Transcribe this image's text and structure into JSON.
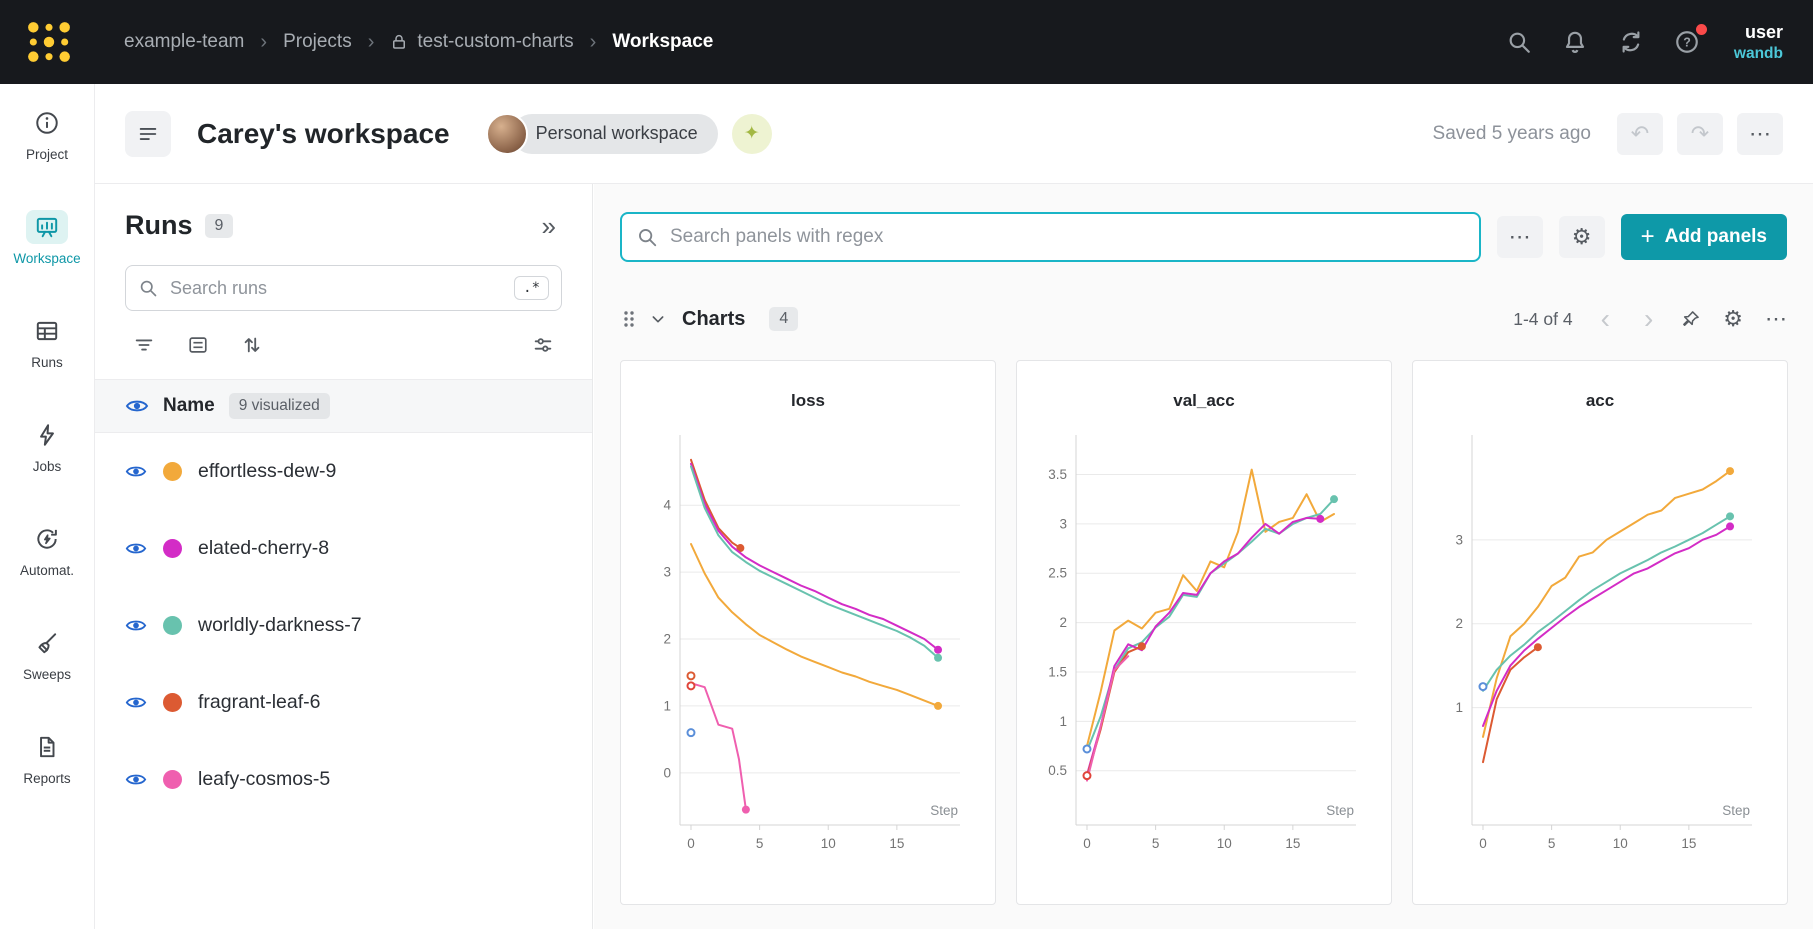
{
  "topbar": {
    "breadcrumb": {
      "team": "example-team",
      "section": "Projects",
      "project": "test-custom-charts",
      "page": "Workspace"
    },
    "username": "user",
    "brand": "wandb"
  },
  "left_rail": {
    "items": [
      {
        "label": "Project"
      },
      {
        "label": "Workspace"
      },
      {
        "label": "Runs"
      },
      {
        "label": "Jobs"
      },
      {
        "label": "Automat."
      },
      {
        "label": "Sweeps"
      },
      {
        "label": "Reports"
      }
    ]
  },
  "workspace_header": {
    "title": "Carey's workspace",
    "workspace_badge": "Personal workspace",
    "saved_status": "Saved 5 years ago"
  },
  "runs_panel": {
    "title": "Runs",
    "count": "9",
    "search_placeholder": "Search runs",
    "regex_button": ".*",
    "table_header": {
      "name": "Name",
      "visualized_badge": "9 visualized"
    },
    "runs": [
      {
        "name": "effortless-dew-9",
        "color": "#F2A93B"
      },
      {
        "name": "elated-cherry-8",
        "color": "#D32CC6"
      },
      {
        "name": "worldly-darkness-7",
        "color": "#68C2AE"
      },
      {
        "name": "fragrant-leaf-6",
        "color": "#DC5A32"
      },
      {
        "name": "leafy-cosmos-5",
        "color": "#EF5FAF"
      }
    ]
  },
  "panels_toolbar": {
    "search_placeholder": "Search panels with regex",
    "add_panels_label": "Add panels"
  },
  "charts_section": {
    "title": "Charts",
    "count": "4",
    "pagination": "1-4 of 4"
  },
  "icons": {
    "ellipsis": "⋯",
    "collapse_runs": "»",
    "undo": "↶",
    "redo": "↷",
    "prev": "‹",
    "next": "›",
    "gear": "⚙",
    "sparkle": "✦",
    "plus": "+"
  },
  "colors": {
    "accent_teal": "#0E99A8",
    "focus_border": "#1AB5C7",
    "eye_blue": "#2566CE",
    "brand_cyan": "#4CC8D9",
    "logo_yellow": "#FFCC33",
    "notification_red": "#FB4A4A"
  },
  "chart_data": [
    {
      "type": "line",
      "title": "loss",
      "xlabel": "Step",
      "x_ticks": [
        0,
        5,
        10,
        15
      ],
      "y_ticks": [
        0,
        1,
        2,
        3,
        4
      ],
      "xlim": [
        -0.8,
        19.6
      ],
      "ylim": [
        -0.78,
        5.05
      ],
      "legend": "off",
      "grid": "horizontal",
      "series": [
        {
          "name": "fragrant-leaf-6",
          "color": "#DC5A32",
          "end_dot": true,
          "points": [
            [
              0,
              4.68
            ],
            [
              1,
              4.08
            ],
            [
              2,
              3.66
            ],
            [
              3,
              3.44
            ],
            [
              3.6,
              3.36
            ]
          ]
        },
        {
          "name": "elated-cherry-8",
          "color": "#D32CC6",
          "end_dot": true,
          "points": [
            [
              0,
              4.62
            ],
            [
              1,
              4.02
            ],
            [
              2,
              3.62
            ],
            [
              3,
              3.38
            ],
            [
              4,
              3.22
            ],
            [
              5,
              3.1
            ],
            [
              6,
              3.0
            ],
            [
              7,
              2.9
            ],
            [
              8,
              2.8
            ],
            [
              9,
              2.72
            ],
            [
              10,
              2.62
            ],
            [
              11,
              2.52
            ],
            [
              12,
              2.45
            ],
            [
              13,
              2.36
            ],
            [
              14,
              2.3
            ],
            [
              15,
              2.2
            ],
            [
              16,
              2.1
            ],
            [
              17,
              2.0
            ],
            [
              18,
              1.84
            ]
          ]
        },
        {
          "name": "worldly-darkness-7",
          "color": "#68C2AE",
          "end_dot": true,
          "points": [
            [
              0,
              4.58
            ],
            [
              1,
              3.96
            ],
            [
              2,
              3.55
            ],
            [
              3,
              3.3
            ],
            [
              4,
              3.15
            ],
            [
              5,
              3.02
            ],
            [
              6,
              2.92
            ],
            [
              7,
              2.82
            ],
            [
              8,
              2.72
            ],
            [
              9,
              2.62
            ],
            [
              10,
              2.52
            ],
            [
              11,
              2.44
            ],
            [
              12,
              2.36
            ],
            [
              13,
              2.28
            ],
            [
              14,
              2.2
            ],
            [
              15,
              2.12
            ],
            [
              16,
              2.02
            ],
            [
              17,
              1.9
            ],
            [
              18,
              1.72
            ]
          ]
        },
        {
          "name": "effortless-dew-9",
          "color": "#F2A93B",
          "end_dot": true,
          "points": [
            [
              0,
              3.42
            ],
            [
              1,
              2.98
            ],
            [
              2,
              2.62
            ],
            [
              3,
              2.4
            ],
            [
              4,
              2.22
            ],
            [
              5,
              2.06
            ],
            [
              6,
              1.95
            ],
            [
              7,
              1.84
            ],
            [
              8,
              1.74
            ],
            [
              9,
              1.66
            ],
            [
              10,
              1.58
            ],
            [
              11,
              1.5
            ],
            [
              12,
              1.44
            ],
            [
              13,
              1.36
            ],
            [
              14,
              1.3
            ],
            [
              15,
              1.24
            ],
            [
              16,
              1.16
            ],
            [
              17,
              1.08
            ],
            [
              18,
              1.0
            ]
          ]
        },
        {
          "name": "leafy-cosmos-5",
          "color": "#EF5FAF",
          "end_dot": true,
          "points": [
            [
              0,
              1.34
            ],
            [
              1,
              1.28
            ],
            [
              2,
              0.72
            ],
            [
              3,
              0.66
            ],
            [
              3.5,
              0.2
            ],
            [
              4,
              -0.55
            ]
          ]
        },
        {
          "name": "",
          "color": "#DC5A32",
          "open_dot": true,
          "points": [
            [
              0,
              1.45
            ]
          ]
        },
        {
          "name": "",
          "color": "#E0443A",
          "open_dot": true,
          "points": [
            [
              0,
              1.3
            ]
          ]
        },
        {
          "name": "",
          "color": "#5B8FD9",
          "open_dot": true,
          "points": [
            [
              0,
              0.6
            ]
          ]
        }
      ]
    },
    {
      "type": "line",
      "title": "val_acc",
      "xlabel": "Step",
      "x_ticks": [
        0,
        5,
        10,
        15
      ],
      "y_ticks": [
        0.5,
        1,
        1.5,
        2,
        2.5,
        3,
        3.5
      ],
      "xlim": [
        -0.8,
        19.6
      ],
      "ylim": [
        -0.05,
        3.9
      ],
      "legend": "off",
      "grid": "horizontal",
      "series": [
        {
          "name": "effortless-dew-9",
          "color": "#F2A93B",
          "points": [
            [
              0,
              0.75
            ],
            [
              1,
              1.3
            ],
            [
              2,
              1.92
            ],
            [
              3,
              2.02
            ],
            [
              4,
              1.94
            ],
            [
              5,
              2.1
            ],
            [
              6,
              2.14
            ],
            [
              7,
              2.48
            ],
            [
              8,
              2.32
            ],
            [
              9,
              2.62
            ],
            [
              10,
              2.56
            ],
            [
              11,
              2.92
            ],
            [
              12,
              3.55
            ],
            [
              13,
              2.92
            ],
            [
              14,
              3.02
            ],
            [
              15,
              3.06
            ],
            [
              16,
              3.3
            ],
            [
              17,
              3.02
            ],
            [
              18,
              3.1
            ]
          ]
        },
        {
          "name": "worldly-darkness-7",
          "color": "#68C2AE",
          "end_dot": true,
          "points": [
            [
              0,
              0.7
            ],
            [
              1,
              1.05
            ],
            [
              2,
              1.52
            ],
            [
              3,
              1.74
            ],
            [
              4,
              1.8
            ],
            [
              5,
              1.95
            ],
            [
              6,
              2.06
            ],
            [
              7,
              2.28
            ],
            [
              8,
              2.26
            ],
            [
              9,
              2.5
            ],
            [
              10,
              2.6
            ],
            [
              11,
              2.7
            ],
            [
              12,
              2.82
            ],
            [
              13,
              2.95
            ],
            [
              14,
              2.9
            ],
            [
              15,
              3.0
            ],
            [
              16,
              3.06
            ],
            [
              17,
              3.1
            ],
            [
              18,
              3.25
            ]
          ]
        },
        {
          "name": "elated-cherry-8",
          "color": "#D32CC6",
          "end_dot": true,
          "points": [
            [
              0,
              0.46
            ],
            [
              1,
              0.95
            ],
            [
              2,
              1.56
            ],
            [
              3,
              1.78
            ],
            [
              4,
              1.72
            ],
            [
              5,
              1.96
            ],
            [
              6,
              2.1
            ],
            [
              7,
              2.3
            ],
            [
              8,
              2.28
            ],
            [
              9,
              2.5
            ],
            [
              10,
              2.62
            ],
            [
              11,
              2.7
            ],
            [
              12,
              2.86
            ],
            [
              13,
              3.0
            ],
            [
              14,
              2.9
            ],
            [
              15,
              3.02
            ],
            [
              16,
              3.06
            ],
            [
              17,
              3.05
            ]
          ]
        },
        {
          "name": "fragrant-leaf-6",
          "color": "#DC5A32",
          "end_dot": true,
          "points": [
            [
              0,
              0.44
            ],
            [
              1,
              0.92
            ],
            [
              2,
              1.5
            ],
            [
              3,
              1.7
            ],
            [
              4,
              1.76
            ]
          ]
        },
        {
          "name": "leafy-cosmos-5",
          "color": "#EF5FAF",
          "points": [
            [
              0,
              0.4
            ],
            [
              1,
              0.95
            ],
            [
              2,
              1.52
            ],
            [
              3,
              1.66
            ]
          ]
        },
        {
          "name": "",
          "color": "#5B8FD9",
          "open_dot": true,
          "points": [
            [
              0,
              0.72
            ]
          ]
        },
        {
          "name": "",
          "color": "#E0443A",
          "open_dot": true,
          "points": [
            [
              0,
              0.45
            ]
          ]
        }
      ]
    },
    {
      "type": "line",
      "title": "acc",
      "xlabel": "Step",
      "x_ticks": [
        0,
        5,
        10,
        15
      ],
      "y_ticks": [
        1,
        2,
        3
      ],
      "xlim": [
        -0.8,
        19.6
      ],
      "ylim": [
        -0.4,
        4.25
      ],
      "legend": "off",
      "grid": "horizontal",
      "series": [
        {
          "name": "effortless-dew-9",
          "color": "#F2A93B",
          "end_dot": true,
          "points": [
            [
              0,
              0.65
            ],
            [
              1,
              1.35
            ],
            [
              2,
              1.85
            ],
            [
              3,
              2.0
            ],
            [
              4,
              2.2
            ],
            [
              5,
              2.45
            ],
            [
              6,
              2.55
            ],
            [
              7,
              2.8
            ],
            [
              8,
              2.85
            ],
            [
              9,
              3.0
            ],
            [
              10,
              3.1
            ],
            [
              11,
              3.2
            ],
            [
              12,
              3.3
            ],
            [
              13,
              3.35
            ],
            [
              14,
              3.5
            ],
            [
              15,
              3.55
            ],
            [
              16,
              3.6
            ],
            [
              17,
              3.7
            ],
            [
              18,
              3.82
            ]
          ]
        },
        {
          "name": "worldly-darkness-7",
          "color": "#68C2AE",
          "end_dot": true,
          "points": [
            [
              0,
              1.2
            ],
            [
              1,
              1.45
            ],
            [
              2,
              1.62
            ],
            [
              3,
              1.75
            ],
            [
              4,
              1.9
            ],
            [
              5,
              2.02
            ],
            [
              6,
              2.15
            ],
            [
              7,
              2.28
            ],
            [
              8,
              2.4
            ],
            [
              9,
              2.5
            ],
            [
              10,
              2.6
            ],
            [
              11,
              2.68
            ],
            [
              12,
              2.76
            ],
            [
              13,
              2.85
            ],
            [
              14,
              2.92
            ],
            [
              15,
              3.0
            ],
            [
              16,
              3.08
            ],
            [
              17,
              3.18
            ],
            [
              18,
              3.28
            ]
          ]
        },
        {
          "name": "elated-cherry-8",
          "color": "#D32CC6",
          "end_dot": true,
          "points": [
            [
              0,
              0.78
            ],
            [
              1,
              1.2
            ],
            [
              2,
              1.5
            ],
            [
              3,
              1.68
            ],
            [
              4,
              1.82
            ],
            [
              5,
              1.95
            ],
            [
              6,
              2.08
            ],
            [
              7,
              2.2
            ],
            [
              8,
              2.3
            ],
            [
              9,
              2.4
            ],
            [
              10,
              2.5
            ],
            [
              11,
              2.6
            ],
            [
              12,
              2.66
            ],
            [
              13,
              2.75
            ],
            [
              14,
              2.84
            ],
            [
              15,
              2.9
            ],
            [
              16,
              3.0
            ],
            [
              17,
              3.06
            ],
            [
              18,
              3.16
            ]
          ]
        },
        {
          "name": "fragrant-leaf-6",
          "color": "#DC5A32",
          "end_dot": true,
          "points": [
            [
              0,
              0.35
            ],
            [
              1,
              1.1
            ],
            [
              2,
              1.45
            ],
            [
              3,
              1.6
            ],
            [
              4,
              1.72
            ]
          ]
        },
        {
          "name": "",
          "color": "#5B8FD9",
          "open_dot": true,
          "points": [
            [
              0,
              1.25
            ]
          ]
        }
      ]
    }
  ]
}
